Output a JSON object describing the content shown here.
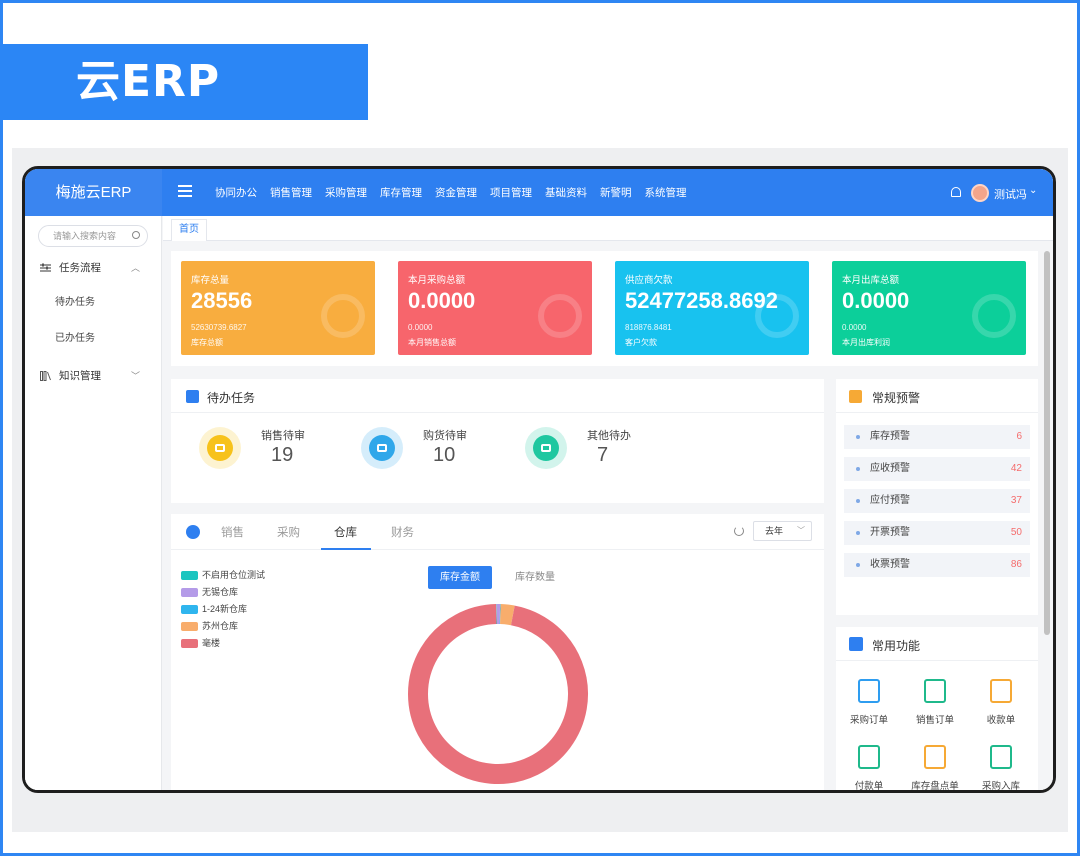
{
  "banner": {
    "title": "云ERP"
  },
  "app": {
    "logo": "梅施云ERP"
  },
  "menu": [
    "协同办公",
    "销售管理",
    "采购管理",
    "库存管理",
    "资金管理",
    "项目管理",
    "基础资料",
    "新警明",
    "系统管理"
  ],
  "user": {
    "name": "测试冯"
  },
  "sidebar": {
    "search_placeholder": "请输入搜索内容",
    "items": [
      {
        "label": "任务流程",
        "expanded": true
      },
      {
        "label": "待办任务"
      },
      {
        "label": "已办任务"
      },
      {
        "label": "知识管理",
        "expanded": false
      }
    ]
  },
  "tabs": {
    "home": "首页"
  },
  "stats": [
    {
      "label": "库存总量",
      "value": "28556",
      "sub_value": "52630739.6827",
      "sub_label": "库存总额",
      "color": "#f8ad3f"
    },
    {
      "label": "本月采购总额",
      "value": "0.0000",
      "sub_value": "0.0000",
      "sub_label": "本月销售总额",
      "color": "#f7656c"
    },
    {
      "label": "供应商欠款",
      "value": "52477258.8692",
      "sub_value": "818876.8481",
      "sub_label": "客户欠款",
      "color": "#18c2ef"
    },
    {
      "label": "本月出库总额",
      "value": "0.0000",
      "sub_value": "0.0000",
      "sub_label": "本月出库利润",
      "color": "#0ccf9a"
    }
  ],
  "pending": {
    "title": "待办任务",
    "items": [
      {
        "label": "销售待审",
        "count": "19",
        "color": "#f7c21b"
      },
      {
        "label": "购货待审",
        "count": "10",
        "color": "#2fa7ea"
      },
      {
        "label": "其他待办",
        "count": "7",
        "color": "#1fc7a0"
      }
    ]
  },
  "chart_panel": {
    "tabs": [
      "销售",
      "采购",
      "仓库",
      "财务"
    ],
    "active_tab": "仓库",
    "year_select": "去年",
    "toggle_on": "库存金额",
    "toggle_off": "库存数量"
  },
  "chart_data": {
    "type": "pie",
    "legend": [
      "不启用仓位测试",
      "无锡仓库",
      "1-24新仓库",
      "苏州仓库",
      "毫楼"
    ],
    "colors": [
      "#1cc5c0",
      "#b49be8",
      "#2fb5ee",
      "#f8ad6c",
      "#e8707a"
    ],
    "values": [
      0.1,
      0.6,
      0.1,
      2.5,
      96.7
    ],
    "legend_position": "top-left"
  },
  "alerts": {
    "title": "常规预警",
    "items": [
      {
        "label": "库存预警",
        "count": "6"
      },
      {
        "label": "应收预警",
        "count": "42"
      },
      {
        "label": "应付预警",
        "count": "37"
      },
      {
        "label": "开票预警",
        "count": "50"
      },
      {
        "label": "收票预警",
        "count": "86"
      }
    ]
  },
  "functions": {
    "title": "常用功能",
    "items": [
      {
        "label": "采购订单",
        "color": "#2e9df0"
      },
      {
        "label": "销售订单",
        "color": "#1fb98b"
      },
      {
        "label": "收款单",
        "color": "#f6a935"
      },
      {
        "label": "付款单",
        "color": "#1fb98b"
      },
      {
        "label": "库存盘点单",
        "color": "#f6a935"
      },
      {
        "label": "采购入库",
        "color": "#1fb98b"
      }
    ]
  }
}
